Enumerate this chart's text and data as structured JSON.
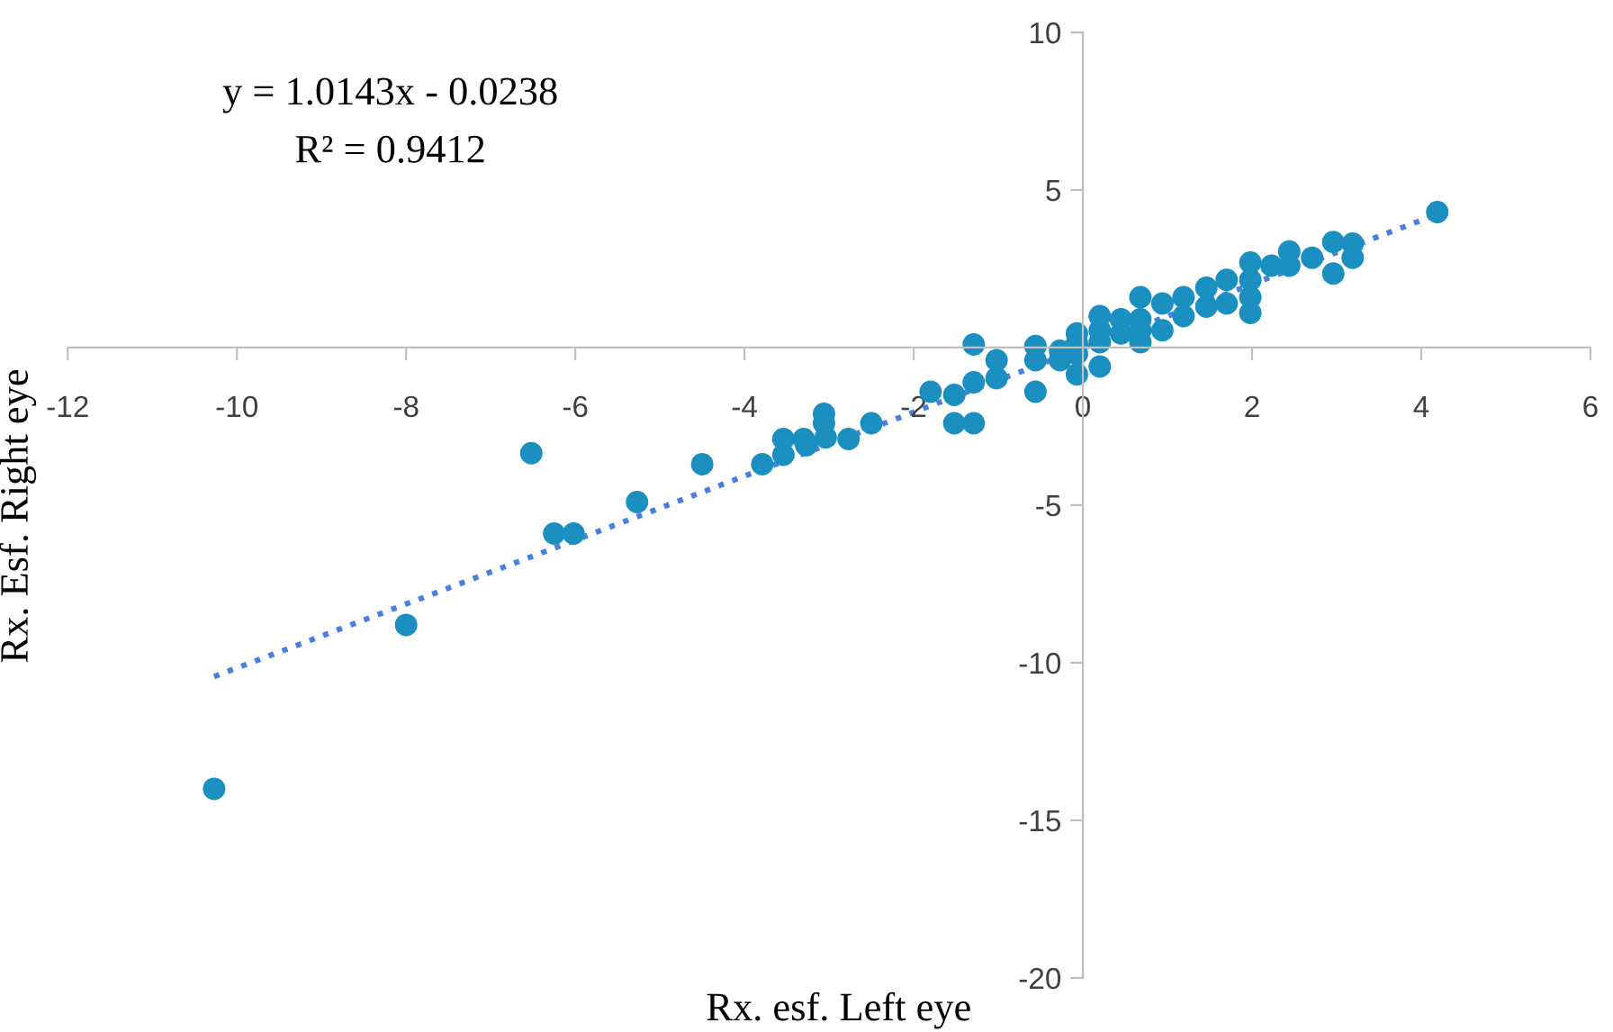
{
  "chart_data": {
    "type": "scatter",
    "xlabel": "Rx. esf. Left eye",
    "ylabel": "Rx. Esf. Right eye",
    "annotations": [
      "y = 1.0143x - 0.0238",
      "R² = 0.9412"
    ],
    "xlim": [
      -12,
      6
    ],
    "xticks": [
      -12,
      -10,
      -8,
      -6,
      -4,
      -2,
      0,
      2,
      4,
      6
    ],
    "ylim": [
      -20,
      10
    ],
    "yticks": [
      -20,
      -15,
      -10,
      -5,
      {
        "value": 0,
        "label": null
      },
      5,
      10
    ],
    "grid": false,
    "legend": false,
    "marker": "circle",
    "series": [
      {
        "color": "#1a8fc0",
        "x": [
          -10.27,
          -8,
          -6.52,
          -6.25,
          -6.02,
          -5.27,
          -4.5,
          -3.79,
          -3.54,
          -3.54,
          -3.3,
          -3.27,
          -3.06,
          -3.06,
          -3.04,
          -2.77,
          -2.5,
          -1.8,
          -1.52,
          -1.52,
          -1.29,
          -1.29,
          -1.29,
          -1.02,
          -1.02,
          -0.56,
          -0.56,
          -0.56,
          -0.27,
          -0.27,
          -0.07,
          -0.07,
          -0.07,
          -0.07,
          0.2,
          0.2,
          0.2,
          0.2,
          0.45,
          0.45,
          0.68,
          0.68,
          0.68,
          0.68,
          0.94,
          0.94,
          1.19,
          1.19,
          1.46,
          1.46,
          1.7,
          1.7,
          1.98,
          1.98,
          1.98,
          1.98,
          2.23,
          2.44,
          2.44,
          2.71,
          2.96,
          2.96,
          3.19,
          3.19,
          4.19
        ],
        "values": [
          -14.0,
          -8.8,
          -3.35,
          -5.9,
          -5.9,
          -4.9,
          -3.7,
          -3.7,
          -2.9,
          -3.4,
          -2.9,
          -3.1,
          -2.1,
          -2.4,
          -2.85,
          -2.9,
          -2.4,
          -1.4,
          -2.4,
          -1.5,
          -2.4,
          0.1,
          -1.1,
          -0.97,
          -0.4,
          -1.4,
          0.05,
          -0.4,
          -0.1,
          -0.4,
          0.45,
          0.15,
          -0.2,
          -0.85,
          1.0,
          0.55,
          0.17,
          -0.6,
          0.9,
          0.45,
          1.6,
          0.9,
          0.17,
          0.55,
          1.4,
          0.55,
          1.6,
          1.0,
          1.9,
          1.3,
          2.15,
          1.4,
          2.7,
          2.15,
          1.6,
          1.1,
          2.6,
          3.05,
          2.6,
          2.85,
          3.35,
          2.35,
          3.3,
          2.85,
          4.3
        ]
      },
      {
        "type": "line",
        "color": "#4a7fe0",
        "line_style": "dotted",
        "marker": "none",
        "x": [
          -10.27,
          4.19
        ],
        "values": [
          -10.44,
          4.23
        ]
      }
    ]
  }
}
